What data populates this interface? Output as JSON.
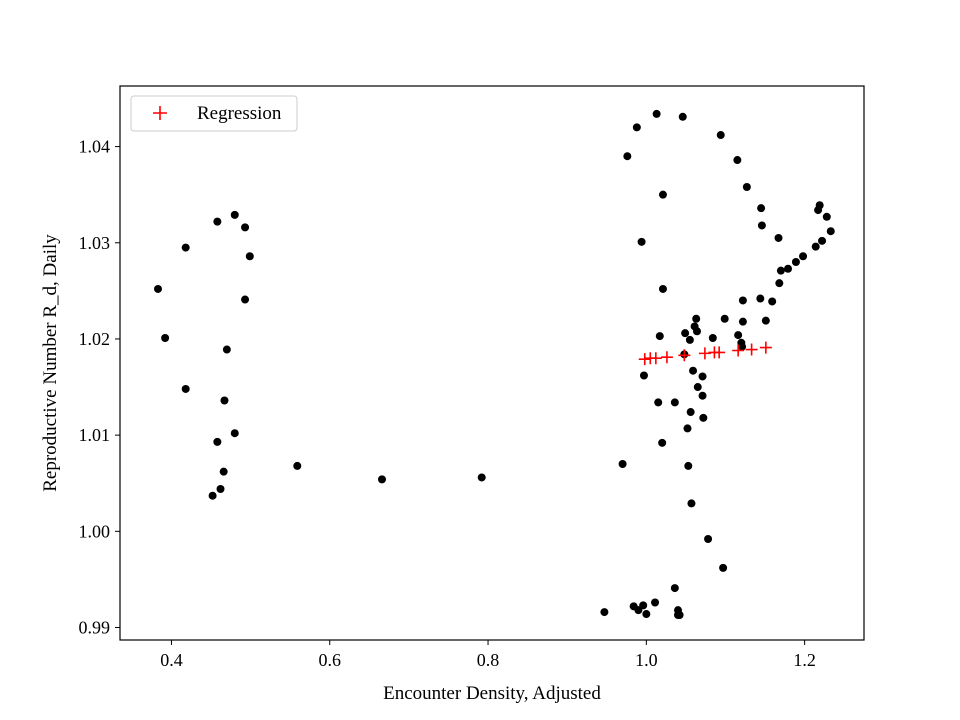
{
  "chart_data": {
    "type": "scatter",
    "title": "",
    "xlabel": "Encounter Density, Adjusted",
    "ylabel": "Reproductive Number R_d, Daily",
    "xlim": [
      0.335,
      1.275
    ],
    "ylim": [
      0.9887,
      1.0463
    ],
    "xticks": [
      {
        "value": 0.4,
        "label": "0.4"
      },
      {
        "value": 0.6,
        "label": "0.6"
      },
      {
        "value": 0.8,
        "label": "0.8"
      },
      {
        "value": 1.0,
        "label": "1.0"
      },
      {
        "value": 1.2,
        "label": "1.2"
      }
    ],
    "yticks": [
      {
        "value": 0.99,
        "label": "0.99"
      },
      {
        "value": 1.0,
        "label": "1.00"
      },
      {
        "value": 1.01,
        "label": "1.01"
      },
      {
        "value": 1.02,
        "label": "1.02"
      },
      {
        "value": 1.03,
        "label": "1.03"
      },
      {
        "value": 1.04,
        "label": "1.04"
      }
    ],
    "grid": false,
    "legend": {
      "position": "top-left",
      "entries": [
        "Regression"
      ]
    },
    "series": [
      {
        "marker": "dot",
        "color": "#000000",
        "points": [
          [
            0.383,
            1.0252
          ],
          [
            0.392,
            1.0201
          ],
          [
            0.418,
            1.0295
          ],
          [
            0.418,
            1.0148
          ],
          [
            0.452,
            1.0037
          ],
          [
            0.458,
            1.0322
          ],
          [
            0.458,
            1.0093
          ],
          [
            0.462,
            1.0044
          ],
          [
            0.466,
            1.0062
          ],
          [
            0.467,
            1.0136
          ],
          [
            0.47,
            1.0189
          ],
          [
            0.48,
            1.0329
          ],
          [
            0.48,
            1.0102
          ],
          [
            0.493,
            1.0316
          ],
          [
            0.493,
            1.0241
          ],
          [
            0.499,
            1.0286
          ],
          [
            0.559,
            1.0068
          ],
          [
            0.666,
            1.0054
          ],
          [
            0.792,
            1.0056
          ],
          [
            0.947,
            0.9916
          ],
          [
            0.97,
            1.007
          ],
          [
            0.976,
            1.039
          ],
          [
            0.984,
            0.9922
          ],
          [
            0.988,
            1.042
          ],
          [
            0.99,
            0.9918
          ],
          [
            0.994,
            1.0301
          ],
          [
            0.996,
            0.9923
          ],
          [
            0.997,
            1.0162
          ],
          [
            1.0,
            0.9914
          ],
          [
            1.011,
            0.9926
          ],
          [
            1.013,
            1.0434
          ],
          [
            1.015,
            1.0134
          ],
          [
            1.017,
            1.0203
          ],
          [
            1.02,
            1.0092
          ],
          [
            1.021,
            1.035
          ],
          [
            1.021,
            1.0252
          ],
          [
            1.036,
            1.0134
          ],
          [
            1.036,
            0.9941
          ],
          [
            1.04,
            0.9913
          ],
          [
            1.04,
            0.9918
          ],
          [
            1.042,
            0.9913
          ],
          [
            1.046,
            1.0431
          ],
          [
            1.048,
            1.0184
          ],
          [
            1.049,
            1.0206
          ],
          [
            1.052,
            1.0107
          ],
          [
            1.053,
            1.0068
          ],
          [
            1.055,
            1.0199
          ],
          [
            1.056,
            1.0124
          ],
          [
            1.057,
            1.0029
          ],
          [
            1.059,
            1.0167
          ],
          [
            1.061,
            1.0213
          ],
          [
            1.063,
            1.0221
          ],
          [
            1.064,
            1.0208
          ],
          [
            1.065,
            1.015
          ],
          [
            1.071,
            1.0141
          ],
          [
            1.071,
            1.0161
          ],
          [
            1.072,
            1.0118
          ],
          [
            1.078,
            0.9992
          ],
          [
            1.084,
            1.0201
          ],
          [
            1.094,
            1.0412
          ],
          [
            1.097,
            0.9962
          ],
          [
            1.099,
            1.0221
          ],
          [
            1.115,
            1.0386
          ],
          [
            1.116,
            1.0204
          ],
          [
            1.12,
            1.0196
          ],
          [
            1.121,
            1.0192
          ],
          [
            1.122,
            1.024
          ],
          [
            1.122,
            1.0218
          ],
          [
            1.127,
            1.0358
          ],
          [
            1.144,
            1.0242
          ],
          [
            1.145,
            1.0336
          ],
          [
            1.146,
            1.0318
          ],
          [
            1.151,
            1.0219
          ],
          [
            1.159,
            1.0239
          ],
          [
            1.167,
            1.0305
          ],
          [
            1.168,
            1.0258
          ],
          [
            1.17,
            1.0271
          ],
          [
            1.179,
            1.0273
          ],
          [
            1.189,
            1.028
          ],
          [
            1.198,
            1.0286
          ],
          [
            1.214,
            1.0296
          ],
          [
            1.217,
            1.0334
          ],
          [
            1.219,
            1.0339
          ],
          [
            1.222,
            1.0302
          ],
          [
            1.228,
            1.0327
          ],
          [
            1.233,
            1.0312
          ]
        ]
      },
      {
        "name": "Regression",
        "marker": "plus",
        "color": "#ff0000",
        "points": [
          [
            0.998,
            1.0179
          ],
          [
            1.005,
            1.018
          ],
          [
            1.012,
            1.018
          ],
          [
            1.026,
            1.0181
          ],
          [
            1.048,
            1.0183
          ],
          [
            1.074,
            1.0185
          ],
          [
            1.086,
            1.0186
          ],
          [
            1.092,
            1.0186
          ],
          [
            1.116,
            1.0188
          ],
          [
            1.133,
            1.0189
          ],
          [
            1.151,
            1.0191
          ]
        ]
      }
    ]
  }
}
